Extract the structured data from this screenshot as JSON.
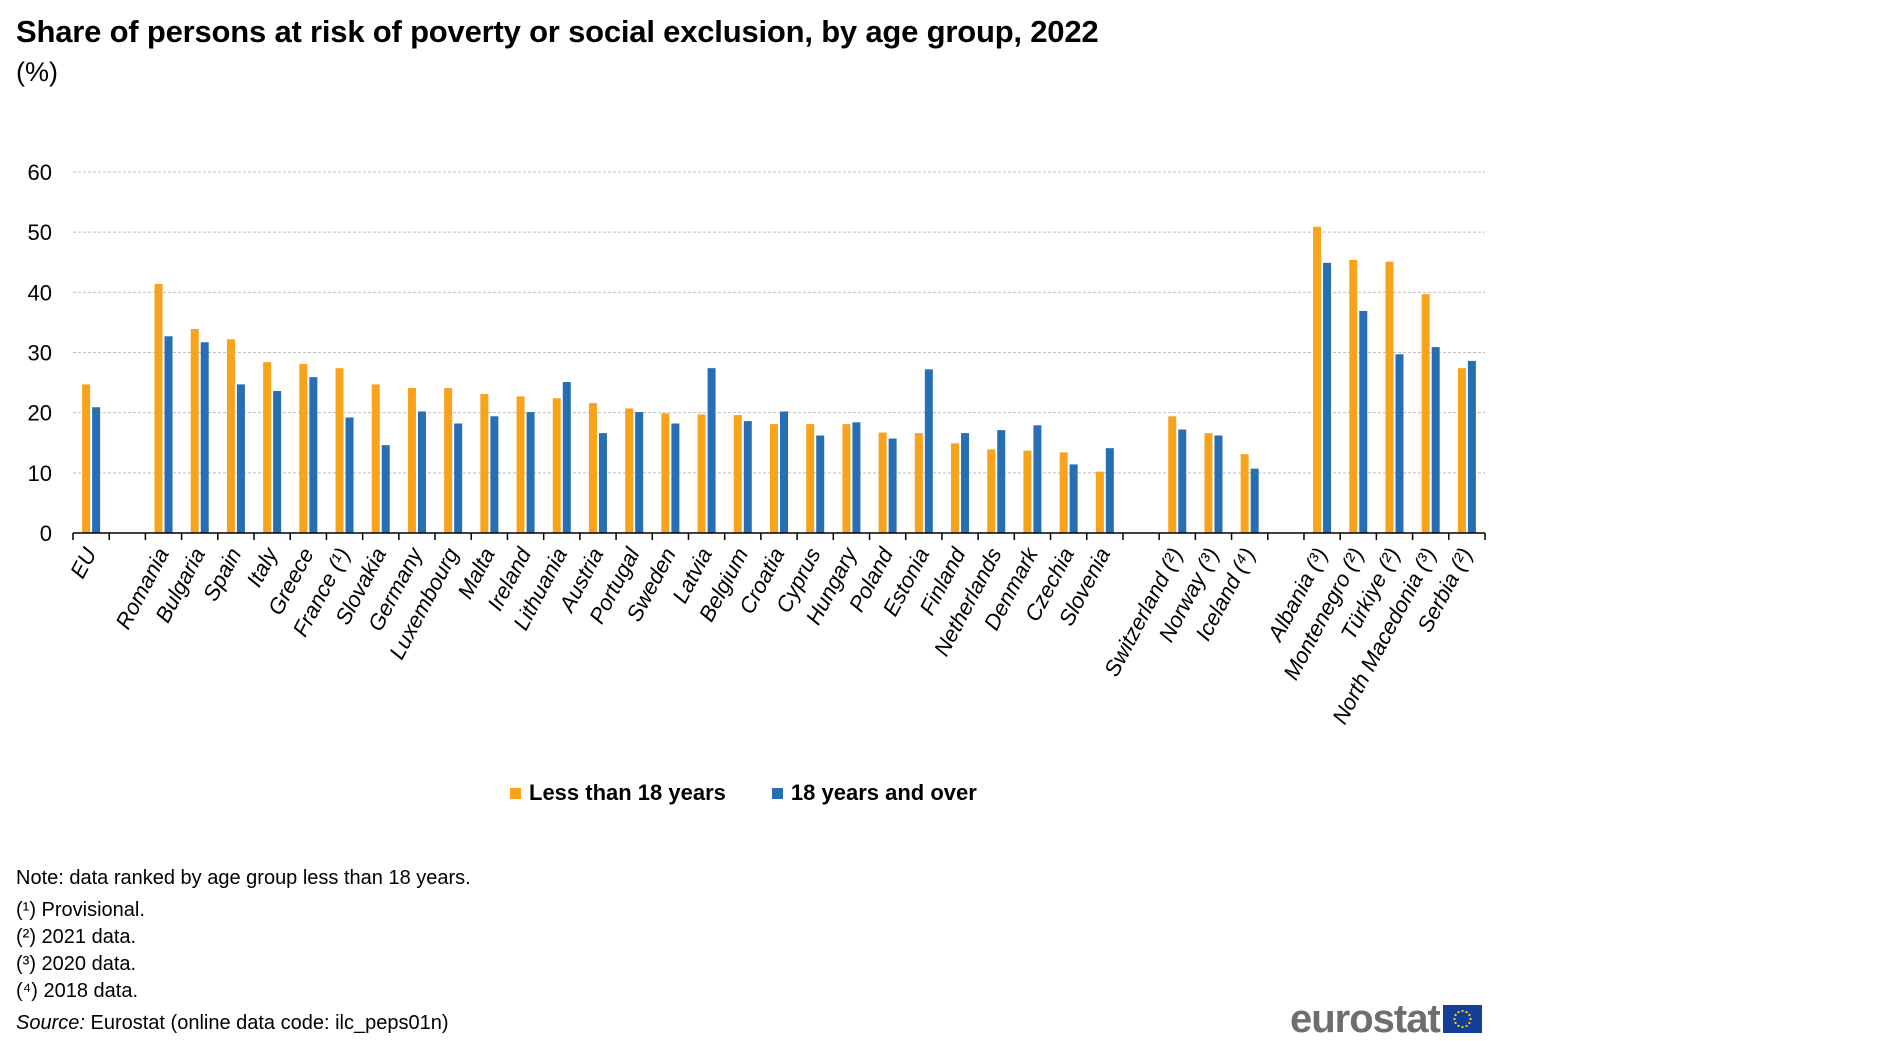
{
  "header": {
    "title": "Share of persons at risk of poverty or social exclusion, by age group, 2022",
    "unit": "(%)"
  },
  "colors": {
    "series_under18": "#f9a31c",
    "series_adult": "#286eb4",
    "grid": "#bfbfbf",
    "axis": "#000000",
    "logo_text": "#6d6e71",
    "logo_flag": "#133f99",
    "logo_stars": "#ffdd00"
  },
  "chart_data": {
    "type": "bar",
    "title": "Share of persons at risk of poverty or social exclusion, by age group, 2022",
    "subtitle": "(%)",
    "xlabel": "",
    "ylabel": "",
    "ylim": [
      0,
      60
    ],
    "yticks": [
      0,
      10,
      20,
      30,
      40,
      50,
      60
    ],
    "grid": true,
    "legend_position": "bottom",
    "categories": [
      "EU",
      "",
      "Romania",
      "Bulgaria",
      "Spain",
      "Italy",
      "Greece",
      "France (¹)",
      "Slovakia",
      "Germany",
      "Luxembourg",
      "Malta",
      "Ireland",
      "Lithuania",
      "Austria",
      "Portugal",
      "Sweden",
      "Latvia",
      "Belgium",
      "Croatia",
      "Cyprus",
      "Hungary",
      "Poland",
      "Estonia",
      "Finland",
      "Netherlands",
      "Denmark",
      "Czechia",
      "Slovenia",
      "",
      "Switzerland (²)",
      "Norway (³)",
      "Iceland (⁴)",
      "",
      "Albania (³)",
      "Montenegro (²)",
      "Türkiye (²)",
      "North Macedonia (³)",
      "Serbia (²)"
    ],
    "series": [
      {
        "name": "Less than 18 years",
        "values": [
          24.7,
          null,
          41.4,
          33.9,
          32.2,
          28.4,
          28.1,
          27.4,
          24.7,
          24.1,
          24.1,
          23.1,
          22.7,
          22.4,
          21.6,
          20.7,
          19.9,
          19.7,
          19.6,
          18.1,
          18.1,
          18.1,
          16.7,
          16.6,
          14.9,
          13.9,
          13.7,
          13.4,
          10.2,
          null,
          19.4,
          16.6,
          13.1,
          null,
          50.9,
          45.4,
          45.1,
          39.7,
          27.4
        ]
      },
      {
        "name": "18 years and over",
        "values": [
          20.9,
          null,
          32.7,
          31.7,
          24.7,
          23.6,
          25.9,
          19.2,
          14.6,
          20.2,
          18.2,
          19.4,
          20.1,
          25.1,
          16.6,
          20.1,
          18.2,
          27.4,
          18.6,
          20.2,
          16.2,
          18.4,
          15.7,
          27.2,
          16.6,
          17.1,
          17.9,
          11.4,
          14.1,
          null,
          17.2,
          16.2,
          10.7,
          null,
          44.9,
          36.9,
          29.7,
          30.9,
          28.6
        ]
      }
    ]
  },
  "legend": {
    "items": [
      {
        "label": "Less than 18 years"
      },
      {
        "label": "18 years and over"
      }
    ]
  },
  "notes": {
    "note": "Note: data ranked by age group less than 18 years.",
    "footnotes": [
      "(¹) Provisional.",
      "(²) 2021 data.",
      "(³) 2020 data.",
      "(⁴) 2018 data."
    ],
    "source_label": "Source:",
    "source_text": " Eurostat (online data code: ilc_peps01n)"
  },
  "logo": {
    "text": "eurostat"
  }
}
